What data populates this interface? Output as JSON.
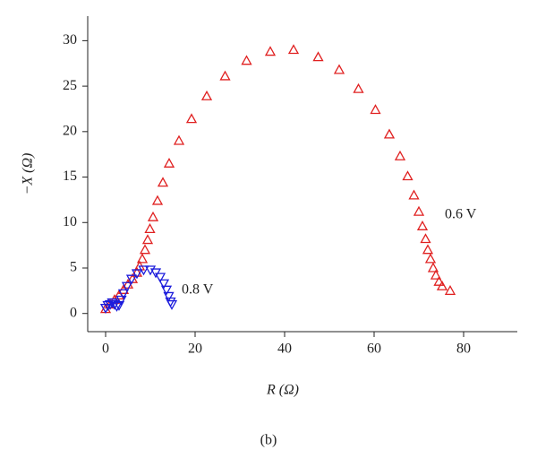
{
  "chart_data": {
    "type": "scatter",
    "xlabel": "R (Ω)",
    "ylabel": "−X (Ω)",
    "caption": "(b)",
    "annotations": [
      "0.6 V",
      "0.8 V"
    ],
    "xlim": [
      -4,
      92
    ],
    "ylim": [
      -2,
      32.7
    ],
    "xticks": [
      0,
      20,
      40,
      60,
      80
    ],
    "yticks": [
      0,
      5,
      10,
      15,
      20,
      25,
      30
    ],
    "series": [
      {
        "name": "0.6 V",
        "color": "#e02020",
        "marker": "triangle-up",
        "x": [
          0,
          1,
          2,
          3,
          4,
          5,
          6,
          7,
          7.6,
          8.2,
          8.8,
          9.4,
          9.9,
          10.6,
          11.6,
          12.8,
          14.2,
          16.4,
          19.2,
          22.6,
          26.7,
          31.5,
          36.8,
          42,
          47.5,
          52.2,
          56.5,
          60.3,
          63.4,
          65.8,
          67.5,
          68.9,
          70.0,
          70.8,
          71.5,
          72.0,
          72.6,
          73.2,
          73.8,
          74.5,
          75.2,
          77.0
        ],
        "y": [
          0.5,
          1.0,
          1.5,
          2.0,
          2.6,
          3.2,
          3.8,
          4.5,
          5.2,
          6.0,
          7.0,
          8.1,
          9.3,
          10.6,
          12.4,
          14.4,
          16.5,
          19.0,
          21.4,
          23.9,
          26.1,
          27.8,
          28.8,
          29,
          28.2,
          26.8,
          24.7,
          22.4,
          19.7,
          17.3,
          15.1,
          13.0,
          11.2,
          9.6,
          8.2,
          7.0,
          6.0,
          5.0,
          4.2,
          3.5,
          3.0,
          2.5
        ]
      },
      {
        "name": "0.8 V",
        "color": "#1c1cdc",
        "marker": "triangle-down",
        "x": [
          0,
          0.5,
          1,
          1.5,
          2.0,
          2.5,
          3,
          3.5,
          4,
          4.8,
          5.8,
          7,
          8.5,
          10,
          11.2,
          12.2,
          13,
          13.6,
          14.1,
          14.5,
          14.8
        ],
        "y": [
          0.6,
          0.9,
          1.0,
          1.2,
          1.0,
          0.8,
          0.9,
          1.5,
          2.2,
          3.0,
          3.8,
          4.4,
          4.8,
          4.8,
          4.5,
          4.0,
          3.3,
          2.6,
          1.9,
          1.3,
          1.0
        ]
      }
    ]
  }
}
